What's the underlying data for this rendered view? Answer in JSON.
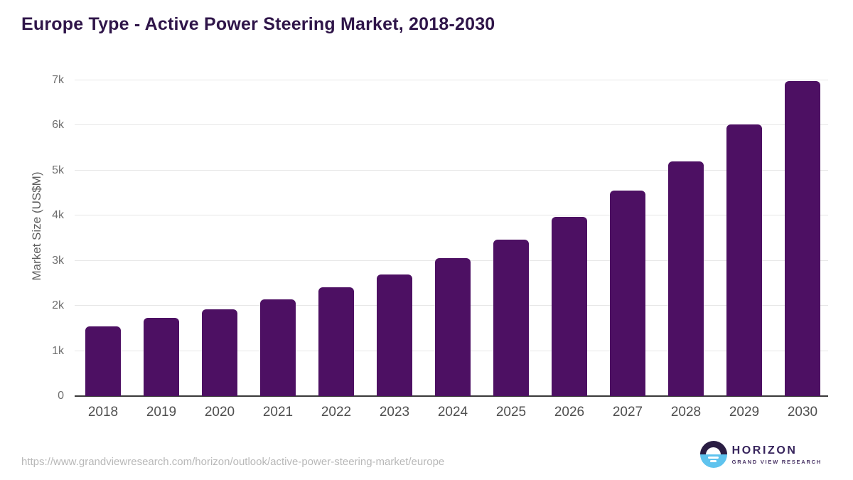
{
  "page": {
    "title": "Europe Type - Active Power Steering Market, 2018-2030"
  },
  "chart_data": {
    "type": "bar",
    "title": "Europe Type - Active Power Steering Market, 2018-2030",
    "xlabel": "",
    "ylabel": "Market Size (US$M)",
    "unit": "US$M",
    "categories": [
      "2018",
      "2019",
      "2020",
      "2021",
      "2022",
      "2023",
      "2024",
      "2025",
      "2026",
      "2027",
      "2028",
      "2029",
      "2030"
    ],
    "values": [
      1550,
      1730,
      1930,
      2150,
      2410,
      2700,
      3060,
      3470,
      3970,
      4550,
      5200,
      6030,
      6990
    ],
    "ylim": [
      0,
      7000
    ],
    "yticks": [
      {
        "value": 0,
        "label": "0"
      },
      {
        "value": 1000,
        "label": "1k"
      },
      {
        "value": 2000,
        "label": "2k"
      },
      {
        "value": 3000,
        "label": "3k"
      },
      {
        "value": 4000,
        "label": "4k"
      },
      {
        "value": 5000,
        "label": "5k"
      },
      {
        "value": 6000,
        "label": "6k"
      },
      {
        "value": 7000,
        "label": "7k"
      }
    ],
    "grid": true,
    "legend": false,
    "bar_color": "#4d1063"
  },
  "footer": {
    "source_url": "https://www.grandviewresearch.com/horizon/outlook/active-power-steering-market/europe",
    "logo": {
      "name": "HORIZON",
      "subtitle": "GRAND VIEW RESEARCH"
    }
  },
  "colors": {
    "title_color": "#2f1549",
    "bar_color": "#4d1063",
    "axis_text": "#5f5f5f",
    "tick_text": "#6f6f6f",
    "xtick_text": "#4f4f4f",
    "grid_color": "#e7e7e7",
    "axis_line": "#3a3a3a",
    "url_color": "#b8b8b8",
    "logo_dark": "#2a1d43",
    "logo_blue": "#5fc3ee",
    "logo_text": "#37245c",
    "logo_subtext": "#4a3566"
  }
}
